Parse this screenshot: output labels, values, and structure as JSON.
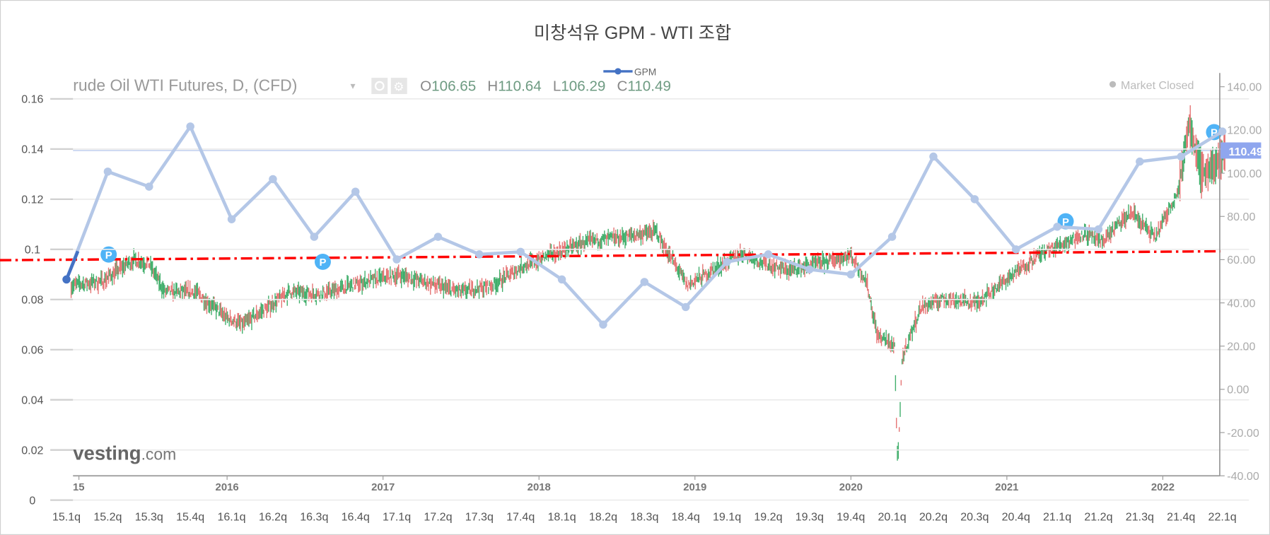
{
  "chart_data": {
    "type": "line",
    "title": "미창석유 GPM - WTI 조합",
    "legend": {
      "label": "GPM",
      "placement": "top-center"
    },
    "categories": [
      "15.1q",
      "15.2q",
      "15.3q",
      "15.4q",
      "16.1q",
      "16.2q",
      "16.3q",
      "16.4q",
      "17.1q",
      "17.2q",
      "17.3q",
      "17.4q",
      "18.1q",
      "18.2q",
      "18.3q",
      "18.4q",
      "19.1q",
      "19.2q",
      "19.3q",
      "19.4q",
      "20.1q",
      "20.2q",
      "20.3q",
      "20.4q",
      "21.1q",
      "21.2q",
      "21.3q",
      "21.4q",
      "22.1q"
    ],
    "series": [
      {
        "name": "GPM",
        "color": "#b4c7e7",
        "values": [
          0.088,
          0.131,
          0.125,
          0.149,
          0.112,
          0.128,
          0.105,
          0.123,
          0.096,
          0.105,
          0.098,
          0.099,
          0.088,
          0.07,
          0.087,
          0.077,
          0.095,
          0.098,
          0.092,
          0.09,
          0.105,
          0.137,
          0.12,
          0.1,
          0.109,
          0.108,
          0.135,
          0.137,
          0.147
        ]
      }
    ],
    "ylim": [
      0,
      0.16
    ],
    "yticks": [
      "0",
      "0.02",
      "0.04",
      "0.06",
      "0.08",
      "0.1",
      "0.12",
      "0.14",
      "0.16"
    ],
    "background_chart": {
      "header": "rude Oil WTI Futures, D, (CFD)",
      "ohlc": {
        "o_label": "O",
        "o": "106.65",
        "h_label": "H",
        "h": "110.64",
        "l_label": "L",
        "l": "106.29",
        "c_label": "C",
        "c": "110.49"
      },
      "status": "Market Closed",
      "last_price": "110.49",
      "logo": "Investing.com",
      "logo_visible": "vesting",
      "logo_suffix": ".com",
      "right_ylim": [
        -40,
        140
      ],
      "right_ticks": [
        "140.00",
        "120.00",
        "100.00",
        "80.00",
        "60.00",
        "40.00",
        "20.00",
        "0.00",
        "-20.00",
        "-40.00"
      ],
      "year_ticks": [
        "15",
        "2016",
        "2017",
        "2018",
        "2019",
        "2020",
        "2021",
        "2022"
      ],
      "wti_approx": [
        [
          2015.0,
          48
        ],
        [
          2015.2,
          50
        ],
        [
          2015.4,
          60
        ],
        [
          2015.5,
          58
        ],
        [
          2015.6,
          45
        ],
        [
          2015.8,
          45
        ],
        [
          2016.0,
          33
        ],
        [
          2016.1,
          30
        ],
        [
          2016.4,
          45
        ],
        [
          2016.6,
          44
        ],
        [
          2016.9,
          50
        ],
        [
          2017.1,
          53
        ],
        [
          2017.5,
          45
        ],
        [
          2017.7,
          48
        ],
        [
          2017.9,
          57
        ],
        [
          2018.1,
          63
        ],
        [
          2018.3,
          68
        ],
        [
          2018.5,
          70
        ],
        [
          2018.75,
          73
        ],
        [
          2018.95,
          48
        ],
        [
          2019.3,
          63
        ],
        [
          2019.45,
          58
        ],
        [
          2019.6,
          55
        ],
        [
          2019.9,
          60
        ],
        [
          2020.0,
          62
        ],
        [
          2020.1,
          50
        ],
        [
          2020.17,
          25
        ],
        [
          2020.28,
          20
        ],
        [
          2020.3,
          -37
        ],
        [
          2020.33,
          15
        ],
        [
          2020.45,
          38
        ],
        [
          2020.6,
          42
        ],
        [
          2020.8,
          40
        ],
        [
          2020.95,
          48
        ],
        [
          2021.2,
          62
        ],
        [
          2021.5,
          72
        ],
        [
          2021.6,
          68
        ],
        [
          2021.8,
          82
        ],
        [
          2021.95,
          70
        ],
        [
          2022.1,
          92
        ],
        [
          2022.17,
          123
        ],
        [
          2022.25,
          100
        ],
        [
          2022.35,
          105
        ],
        [
          2022.4,
          110
        ]
      ],
      "trendline_color": "#ff0000",
      "up_color": "#3fae6a",
      "down_color": "#e57373"
    }
  }
}
